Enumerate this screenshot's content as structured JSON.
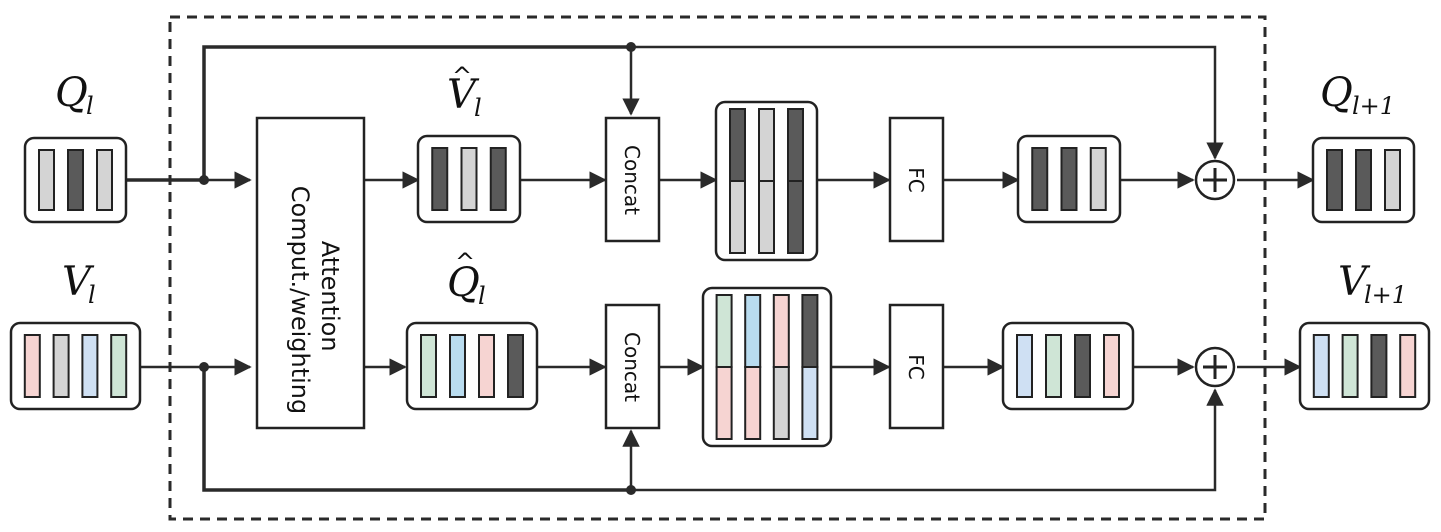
{
  "labels": {
    "q_in": "Q",
    "q_in_sub": "l",
    "v_in": "V",
    "v_in_sub": "l",
    "v_hat": "V",
    "v_hat_sub": "l",
    "hat": "^",
    "q_hat": "Q",
    "q_hat_sub": "l",
    "q_out": "Q",
    "q_out_sub": "l+1",
    "v_out": "V",
    "v_out_sub": "l+1"
  },
  "blocks": {
    "attention_line1": "Attention",
    "attention_line2": "Comput./weighting",
    "concat": "Concat",
    "fc": "FC"
  },
  "colors": {
    "dark": "#5a5a5a",
    "light": "#d4d4d4",
    "pink": "#f6d4d2",
    "blue": "#cfe0f3",
    "green": "#cfe5d6",
    "cyan": "#b9dcef"
  }
}
